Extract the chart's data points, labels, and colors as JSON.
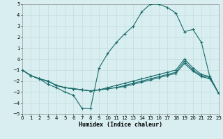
{
  "xlabel": "Humidex (Indice chaleur)",
  "background_color": "#d8eef0",
  "grid_color": "#c8dfe1",
  "line_color": "#1a6b6b",
  "xlim": [
    0,
    23
  ],
  "ylim": [
    -5,
    5
  ],
  "xticks": [
    0,
    1,
    2,
    3,
    4,
    5,
    6,
    7,
    8,
    9,
    10,
    11,
    12,
    13,
    14,
    15,
    16,
    17,
    18,
    19,
    20,
    21,
    22,
    23
  ],
  "yticks": [
    -5,
    -4,
    -3,
    -2,
    -1,
    0,
    1,
    2,
    3,
    4,
    5
  ],
  "line1_x": [
    0,
    1,
    2,
    3,
    4,
    5,
    6,
    7,
    8,
    9,
    10,
    11,
    12,
    13,
    14,
    15,
    16,
    17,
    18,
    19,
    20,
    21,
    22,
    23
  ],
  "line1_y": [
    -1.0,
    -1.5,
    -1.8,
    -2.3,
    -2.6,
    -3.0,
    -3.3,
    -4.5,
    -4.5,
    -0.8,
    0.5,
    1.5,
    2.3,
    3.0,
    4.3,
    5.0,
    5.0,
    4.7,
    4.2,
    2.5,
    2.7,
    1.5,
    -1.7,
    -3.1
  ],
  "line2_x": [
    0,
    1,
    2,
    3,
    4,
    5,
    6,
    7,
    8,
    9,
    10,
    11,
    12,
    13,
    14,
    15,
    16,
    17,
    18,
    19,
    20,
    21,
    22,
    23
  ],
  "line2_y": [
    -1.0,
    -1.5,
    -1.8,
    -2.0,
    -2.4,
    -2.6,
    -2.7,
    -2.8,
    -2.9,
    -2.8,
    -2.7,
    -2.6,
    -2.5,
    -2.3,
    -2.1,
    -1.9,
    -1.7,
    -1.5,
    -1.3,
    -0.4,
    -1.1,
    -1.6,
    -1.8,
    -3.1
  ],
  "line3_x": [
    0,
    1,
    2,
    3,
    4,
    5,
    6,
    7,
    8,
    9,
    10,
    11,
    12,
    13,
    14,
    15,
    16,
    17,
    18,
    19,
    20,
    21,
    22,
    23
  ],
  "line3_y": [
    -1.0,
    -1.5,
    -1.8,
    -2.0,
    -2.4,
    -2.6,
    -2.7,
    -2.8,
    -2.9,
    -2.8,
    -2.7,
    -2.6,
    -2.4,
    -2.2,
    -2.0,
    -1.8,
    -1.6,
    -1.4,
    -1.2,
    -0.2,
    -1.0,
    -1.5,
    -1.7,
    -3.1
  ],
  "line4_x": [
    0,
    1,
    2,
    3,
    4,
    5,
    6,
    7,
    8,
    9,
    10,
    11,
    12,
    13,
    14,
    15,
    16,
    17,
    18,
    19,
    20,
    21,
    22,
    23
  ],
  "line4_y": [
    -1.0,
    -1.5,
    -1.8,
    -2.0,
    -2.4,
    -2.6,
    -2.7,
    -2.8,
    -2.9,
    -2.8,
    -2.6,
    -2.4,
    -2.2,
    -2.0,
    -1.8,
    -1.6,
    -1.4,
    -1.2,
    -1.0,
    0.0,
    -0.8,
    -1.4,
    -1.6,
    -3.1
  ]
}
